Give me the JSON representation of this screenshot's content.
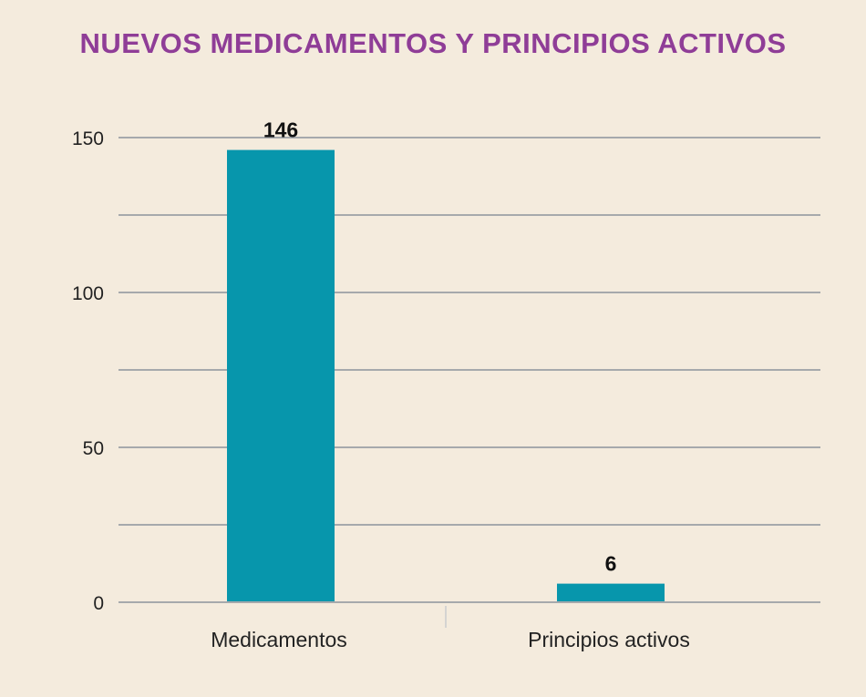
{
  "chart_data": {
    "type": "bar",
    "title": "NUEVOS MEDICAMENTOS Y PRINCIPIOS ACTIVOS",
    "categories": [
      "Medicamentos",
      "Principios activos"
    ],
    "values": [
      146,
      6
    ],
    "data_labels": [
      "146",
      "6"
    ],
    "ylim": [
      0,
      150
    ],
    "yticks": [
      0,
      50,
      100,
      150
    ],
    "ytick_labels": [
      "0",
      "50",
      "100",
      "150"
    ],
    "minor_gridlines": [
      25,
      75,
      125
    ],
    "grid": true,
    "legend": "none",
    "colors": {
      "bar": "#0796ac",
      "title": "#8f3d97",
      "background": "#f4ebdd",
      "gridline": "#a6a9ac"
    }
  }
}
